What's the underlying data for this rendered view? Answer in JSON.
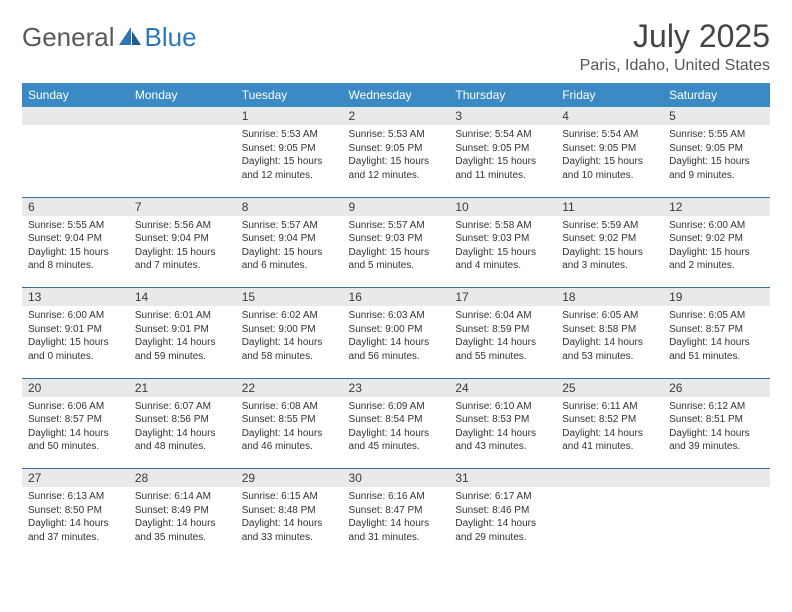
{
  "logo": {
    "word1": "General",
    "word2": "Blue"
  },
  "colors": {
    "header_bg": "#3b8ac4",
    "header_text": "#ffffff",
    "daynum_bg": "#e8e9ea",
    "rule": "#3b6f97",
    "logo_gray": "#5a5a5a",
    "logo_blue": "#2e77b5"
  },
  "title": "July 2025",
  "location": "Paris, Idaho, United States",
  "weekdays": [
    "Sunday",
    "Monday",
    "Tuesday",
    "Wednesday",
    "Thursday",
    "Friday",
    "Saturday"
  ],
  "weeks": [
    {
      "nums": [
        "",
        "",
        "1",
        "2",
        "3",
        "4",
        "5"
      ],
      "cells": [
        null,
        null,
        {
          "sunrise": "Sunrise: 5:53 AM",
          "sunset": "Sunset: 9:05 PM",
          "day1": "Daylight: 15 hours",
          "day2": "and 12 minutes."
        },
        {
          "sunrise": "Sunrise: 5:53 AM",
          "sunset": "Sunset: 9:05 PM",
          "day1": "Daylight: 15 hours",
          "day2": "and 12 minutes."
        },
        {
          "sunrise": "Sunrise: 5:54 AM",
          "sunset": "Sunset: 9:05 PM",
          "day1": "Daylight: 15 hours",
          "day2": "and 11 minutes."
        },
        {
          "sunrise": "Sunrise: 5:54 AM",
          "sunset": "Sunset: 9:05 PM",
          "day1": "Daylight: 15 hours",
          "day2": "and 10 minutes."
        },
        {
          "sunrise": "Sunrise: 5:55 AM",
          "sunset": "Sunset: 9:05 PM",
          "day1": "Daylight: 15 hours",
          "day2": "and 9 minutes."
        }
      ]
    },
    {
      "nums": [
        "6",
        "7",
        "8",
        "9",
        "10",
        "11",
        "12"
      ],
      "cells": [
        {
          "sunrise": "Sunrise: 5:55 AM",
          "sunset": "Sunset: 9:04 PM",
          "day1": "Daylight: 15 hours",
          "day2": "and 8 minutes."
        },
        {
          "sunrise": "Sunrise: 5:56 AM",
          "sunset": "Sunset: 9:04 PM",
          "day1": "Daylight: 15 hours",
          "day2": "and 7 minutes."
        },
        {
          "sunrise": "Sunrise: 5:57 AM",
          "sunset": "Sunset: 9:04 PM",
          "day1": "Daylight: 15 hours",
          "day2": "and 6 minutes."
        },
        {
          "sunrise": "Sunrise: 5:57 AM",
          "sunset": "Sunset: 9:03 PM",
          "day1": "Daylight: 15 hours",
          "day2": "and 5 minutes."
        },
        {
          "sunrise": "Sunrise: 5:58 AM",
          "sunset": "Sunset: 9:03 PM",
          "day1": "Daylight: 15 hours",
          "day2": "and 4 minutes."
        },
        {
          "sunrise": "Sunrise: 5:59 AM",
          "sunset": "Sunset: 9:02 PM",
          "day1": "Daylight: 15 hours",
          "day2": "and 3 minutes."
        },
        {
          "sunrise": "Sunrise: 6:00 AM",
          "sunset": "Sunset: 9:02 PM",
          "day1": "Daylight: 15 hours",
          "day2": "and 2 minutes."
        }
      ]
    },
    {
      "nums": [
        "13",
        "14",
        "15",
        "16",
        "17",
        "18",
        "19"
      ],
      "cells": [
        {
          "sunrise": "Sunrise: 6:00 AM",
          "sunset": "Sunset: 9:01 PM",
          "day1": "Daylight: 15 hours",
          "day2": "and 0 minutes."
        },
        {
          "sunrise": "Sunrise: 6:01 AM",
          "sunset": "Sunset: 9:01 PM",
          "day1": "Daylight: 14 hours",
          "day2": "and 59 minutes."
        },
        {
          "sunrise": "Sunrise: 6:02 AM",
          "sunset": "Sunset: 9:00 PM",
          "day1": "Daylight: 14 hours",
          "day2": "and 58 minutes."
        },
        {
          "sunrise": "Sunrise: 6:03 AM",
          "sunset": "Sunset: 9:00 PM",
          "day1": "Daylight: 14 hours",
          "day2": "and 56 minutes."
        },
        {
          "sunrise": "Sunrise: 6:04 AM",
          "sunset": "Sunset: 8:59 PM",
          "day1": "Daylight: 14 hours",
          "day2": "and 55 minutes."
        },
        {
          "sunrise": "Sunrise: 6:05 AM",
          "sunset": "Sunset: 8:58 PM",
          "day1": "Daylight: 14 hours",
          "day2": "and 53 minutes."
        },
        {
          "sunrise": "Sunrise: 6:05 AM",
          "sunset": "Sunset: 8:57 PM",
          "day1": "Daylight: 14 hours",
          "day2": "and 51 minutes."
        }
      ]
    },
    {
      "nums": [
        "20",
        "21",
        "22",
        "23",
        "24",
        "25",
        "26"
      ],
      "cells": [
        {
          "sunrise": "Sunrise: 6:06 AM",
          "sunset": "Sunset: 8:57 PM",
          "day1": "Daylight: 14 hours",
          "day2": "and 50 minutes."
        },
        {
          "sunrise": "Sunrise: 6:07 AM",
          "sunset": "Sunset: 8:56 PM",
          "day1": "Daylight: 14 hours",
          "day2": "and 48 minutes."
        },
        {
          "sunrise": "Sunrise: 6:08 AM",
          "sunset": "Sunset: 8:55 PM",
          "day1": "Daylight: 14 hours",
          "day2": "and 46 minutes."
        },
        {
          "sunrise": "Sunrise: 6:09 AM",
          "sunset": "Sunset: 8:54 PM",
          "day1": "Daylight: 14 hours",
          "day2": "and 45 minutes."
        },
        {
          "sunrise": "Sunrise: 6:10 AM",
          "sunset": "Sunset: 8:53 PM",
          "day1": "Daylight: 14 hours",
          "day2": "and 43 minutes."
        },
        {
          "sunrise": "Sunrise: 6:11 AM",
          "sunset": "Sunset: 8:52 PM",
          "day1": "Daylight: 14 hours",
          "day2": "and 41 minutes."
        },
        {
          "sunrise": "Sunrise: 6:12 AM",
          "sunset": "Sunset: 8:51 PM",
          "day1": "Daylight: 14 hours",
          "day2": "and 39 minutes."
        }
      ]
    },
    {
      "nums": [
        "27",
        "28",
        "29",
        "30",
        "31",
        "",
        ""
      ],
      "cells": [
        {
          "sunrise": "Sunrise: 6:13 AM",
          "sunset": "Sunset: 8:50 PM",
          "day1": "Daylight: 14 hours",
          "day2": "and 37 minutes."
        },
        {
          "sunrise": "Sunrise: 6:14 AM",
          "sunset": "Sunset: 8:49 PM",
          "day1": "Daylight: 14 hours",
          "day2": "and 35 minutes."
        },
        {
          "sunrise": "Sunrise: 6:15 AM",
          "sunset": "Sunset: 8:48 PM",
          "day1": "Daylight: 14 hours",
          "day2": "and 33 minutes."
        },
        {
          "sunrise": "Sunrise: 6:16 AM",
          "sunset": "Sunset: 8:47 PM",
          "day1": "Daylight: 14 hours",
          "day2": "and 31 minutes."
        },
        {
          "sunrise": "Sunrise: 6:17 AM",
          "sunset": "Sunset: 8:46 PM",
          "day1": "Daylight: 14 hours",
          "day2": "and 29 minutes."
        },
        null,
        null
      ]
    }
  ]
}
